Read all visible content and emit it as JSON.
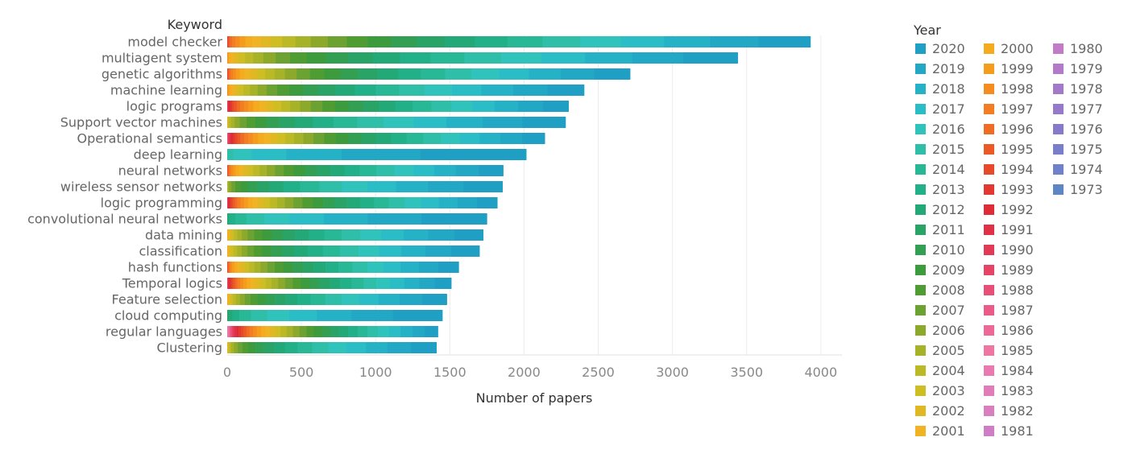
{
  "chart_data": {
    "type": "bar",
    "orientation": "horizontal",
    "stacked": true,
    "keyword_header": "Keyword",
    "xlabel": "Number of papers",
    "xlim": [
      0,
      4150
    ],
    "xticks": [
      0,
      500,
      1000,
      1500,
      2000,
      2500,
      3000,
      3500,
      4000
    ],
    "grid": "vertical",
    "legend_title": "Year",
    "legend_position": "right",
    "legend_years": [
      "2020",
      "2019",
      "2018",
      "2017",
      "2016",
      "2015",
      "2014",
      "2013",
      "2012",
      "2011",
      "2010",
      "2009",
      "2008",
      "2007",
      "2006",
      "2005",
      "2004",
      "2003",
      "2002",
      "2001",
      "2000",
      "1999",
      "1998",
      "1997",
      "1996",
      "1995",
      "1994",
      "1993",
      "1992",
      "1991",
      "1990",
      "1989",
      "1988",
      "1987",
      "1986",
      "1985",
      "1984",
      "1983",
      "1982",
      "1981",
      "1980",
      "1979",
      "1978",
      "1977",
      "1976",
      "1975",
      "1974",
      "1973"
    ],
    "year_colors": {
      "2020": "#1f9fc4",
      "2019": "#22a7c5",
      "2018": "#25b2c6",
      "2017": "#2bbdc5",
      "2016": "#30c3bb",
      "2015": "#2fbfa9",
      "2014": "#28b896",
      "2013": "#21b087",
      "2012": "#23a877",
      "2011": "#2aa366",
      "2010": "#329f52",
      "2009": "#3b9b3d",
      "2008": "#4e9c32",
      "2007": "#6ca232",
      "2006": "#8ca92c",
      "2005": "#a6b228",
      "2004": "#bbb925",
      "2003": "#cfbd24",
      "2002": "#dfb824",
      "2001": "#f0b323",
      "2000": "#f5ab1f",
      "1999": "#f69c1d",
      "1998": "#f48c1f",
      "1997": "#f27d22",
      "1996": "#ef6c24",
      "1995": "#eb5a26",
      "1994": "#e64a2a",
      "1993": "#e13830",
      "1992": "#dd2c36",
      "1991": "#df3045",
      "1990": "#e23a55",
      "1989": "#e54466",
      "1988": "#e84f76",
      "1987": "#eb5b87",
      "1986": "#ed6896",
      "1985": "#ee76a3",
      "1984": "#ea79b1",
      "1983": "#e27cb9",
      "1982": "#d97ebf",
      "1981": "#cf7dc4",
      "1980": "#c27bc7",
      "1979": "#b37ac9",
      "1978": "#a479c9",
      "1977": "#957aca",
      "1976": "#867bca",
      "1975": "#7a7eca",
      "1974": "#6f81c8",
      "1973": "#5f86c4"
    },
    "categories": [
      "model checker",
      "multiagent system",
      "genetic algorithms",
      "machine learning",
      "logic programs",
      "Support vector machines",
      "Operational semantics",
      "deep learning",
      "neural networks",
      "wireless sensor networks",
      "logic programming",
      "convolutional neural networks",
      "data mining",
      "classification",
      "hash functions",
      "Temporal logics",
      "Feature selection",
      "cloud computing",
      "regular languages",
      "Clustering"
    ],
    "totals": [
      3930,
      3440,
      2715,
      2405,
      2300,
      2280,
      2140,
      2015,
      1860,
      1855,
      1820,
      1750,
      1725,
      1700,
      1560,
      1510,
      1480,
      1450,
      1420,
      1410
    ],
    "earliest_year": [
      1993,
      1998,
      1993,
      1997,
      1988,
      2002,
      1986,
      2015,
      1993,
      2004,
      1988,
      2012,
      1999,
      1999,
      1993,
      1987,
      1999,
      2011,
      1980,
      2001
    ]
  }
}
